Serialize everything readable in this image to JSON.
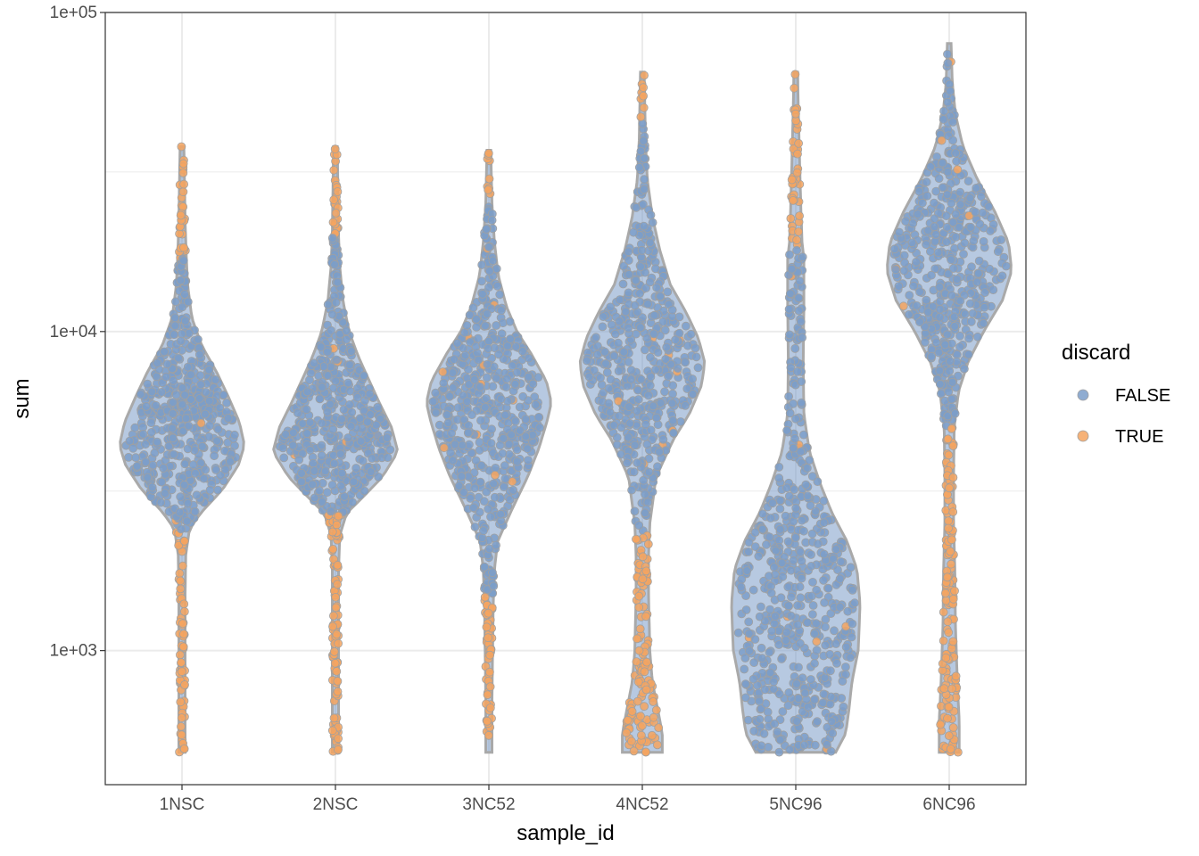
{
  "chart_data": {
    "type": "violin-scatter",
    "xlabel": "sample_id",
    "ylabel": "sum",
    "y_scale": "log10",
    "ylim": [
      380,
      100000
    ],
    "y_ticks": [
      1000,
      10000,
      100000
    ],
    "y_tick_labels": [
      "1e+03",
      "1e+04",
      "1e+05"
    ],
    "grid": true,
    "legend": {
      "title": "discard",
      "position": "right",
      "entries": [
        {
          "label": "FALSE",
          "color": "#7b9dc9"
        },
        {
          "label": "TRUE",
          "color": "#f4a460"
        }
      ]
    },
    "colors": {
      "FALSE": "#7b9dc9",
      "TRUE": "#f4a460",
      "violin_outline": "#a9a9a9",
      "panel_border": "#333333",
      "grid": "#ebebeb"
    },
    "categories": [
      "1NSC",
      "2NSC",
      "3NC52",
      "4NC52",
      "5NC96",
      "6NC96"
    ],
    "samples": [
      {
        "name": "1NSC",
        "min": 480,
        "max": 38000,
        "discard_low_below": 2400,
        "discard_high_above": 17000,
        "density": [
          [
            480,
            0.05
          ],
          [
            700,
            0.05
          ],
          [
            1000,
            0.05
          ],
          [
            1500,
            0.05
          ],
          [
            2000,
            0.06
          ],
          [
            2400,
            0.12
          ],
          [
            2700,
            0.3
          ],
          [
            3200,
            0.65
          ],
          [
            3800,
            0.9
          ],
          [
            4400,
            1.0
          ],
          [
            5200,
            0.92
          ],
          [
            6200,
            0.75
          ],
          [
            7500,
            0.55
          ],
          [
            9000,
            0.32
          ],
          [
            11000,
            0.16
          ],
          [
            14000,
            0.09
          ],
          [
            17000,
            0.07
          ],
          [
            22000,
            0.05
          ],
          [
            30000,
            0.04
          ],
          [
            38000,
            0.03
          ]
        ]
      },
      {
        "name": "2NSC",
        "min": 480,
        "max": 38000,
        "discard_low_below": 2700,
        "discard_high_above": 20000,
        "density": [
          [
            480,
            0.05
          ],
          [
            800,
            0.05
          ],
          [
            1200,
            0.05
          ],
          [
            1800,
            0.05
          ],
          [
            2300,
            0.07
          ],
          [
            2700,
            0.18
          ],
          [
            3000,
            0.42
          ],
          [
            3500,
            0.75
          ],
          [
            4200,
            1.0
          ],
          [
            5000,
            0.9
          ],
          [
            6000,
            0.7
          ],
          [
            7300,
            0.5
          ],
          [
            8500,
            0.35
          ],
          [
            10000,
            0.22
          ],
          [
            12500,
            0.12
          ],
          [
            16000,
            0.07
          ],
          [
            20000,
            0.05
          ],
          [
            28000,
            0.04
          ],
          [
            38000,
            0.03
          ]
        ]
      },
      {
        "name": "3NC52",
        "min": 480,
        "max": 37000,
        "discard_low_below": 1500,
        "discard_high_above": 25000,
        "density": [
          [
            480,
            0.05
          ],
          [
            700,
            0.05
          ],
          [
            1000,
            0.06
          ],
          [
            1400,
            0.07
          ],
          [
            1800,
            0.09
          ],
          [
            2200,
            0.14
          ],
          [
            2800,
            0.38
          ],
          [
            3500,
            0.62
          ],
          [
            4300,
            0.8
          ],
          [
            5300,
            0.94
          ],
          [
            6000,
            1.0
          ],
          [
            7000,
            0.92
          ],
          [
            8500,
            0.68
          ],
          [
            10000,
            0.45
          ],
          [
            12000,
            0.28
          ],
          [
            15000,
            0.15
          ],
          [
            19000,
            0.09
          ],
          [
            25000,
            0.05
          ],
          [
            37000,
            0.03
          ]
        ]
      },
      {
        "name": "4NC52",
        "min": 480,
        "max": 65000,
        "discard_low_below": 2300,
        "discard_high_above": 45000,
        "density": [
          [
            480,
            0.32
          ],
          [
            550,
            0.32
          ],
          [
            650,
            0.25
          ],
          [
            800,
            0.16
          ],
          [
            1000,
            0.12
          ],
          [
            1500,
            0.1
          ],
          [
            2000,
            0.1
          ],
          [
            2500,
            0.12
          ],
          [
            3500,
            0.22
          ],
          [
            4600,
            0.5
          ],
          [
            5500,
            0.75
          ],
          [
            6800,
            0.95
          ],
          [
            8000,
            1.0
          ],
          [
            9500,
            0.9
          ],
          [
            11500,
            0.7
          ],
          [
            14000,
            0.45
          ],
          [
            18000,
            0.28
          ],
          [
            23000,
            0.16
          ],
          [
            30000,
            0.08
          ],
          [
            40000,
            0.05
          ],
          [
            65000,
            0.03
          ]
        ]
      },
      {
        "name": "5NC96",
        "min": 480,
        "max": 65000,
        "discard_low_below": 0,
        "discard_high_above": 18000,
        "density": [
          [
            480,
            0.64
          ],
          [
            550,
            0.8
          ],
          [
            650,
            0.85
          ],
          [
            800,
            0.9
          ],
          [
            1000,
            1.0
          ],
          [
            1400,
            1.03
          ],
          [
            1800,
            0.98
          ],
          [
            2200,
            0.82
          ],
          [
            2700,
            0.58
          ],
          [
            3300,
            0.4
          ],
          [
            4200,
            0.22
          ],
          [
            5500,
            0.13
          ],
          [
            8000,
            0.12
          ],
          [
            12000,
            0.13
          ],
          [
            17000,
            0.13
          ],
          [
            19000,
            0.1
          ],
          [
            25000,
            0.08
          ],
          [
            35000,
            0.06
          ],
          [
            50000,
            0.04
          ],
          [
            65000,
            0.03
          ]
        ]
      },
      {
        "name": "6NC96",
        "min": 480,
        "max": 80000,
        "discard_low_below": 5000,
        "discard_high_above": 0,
        "density": [
          [
            480,
            0.16
          ],
          [
            600,
            0.16
          ],
          [
            800,
            0.13
          ],
          [
            1200,
            0.1
          ],
          [
            1800,
            0.09
          ],
          [
            2500,
            0.07
          ],
          [
            3500,
            0.07
          ],
          [
            5000,
            0.08
          ],
          [
            6500,
            0.15
          ],
          [
            8000,
            0.3
          ],
          [
            10000,
            0.55
          ],
          [
            12500,
            0.85
          ],
          [
            15500,
            1.0
          ],
          [
            19000,
            0.95
          ],
          [
            24000,
            0.72
          ],
          [
            30000,
            0.45
          ],
          [
            38000,
            0.22
          ],
          [
            48000,
            0.1
          ],
          [
            60000,
            0.05
          ],
          [
            80000,
            0.03
          ]
        ]
      }
    ]
  }
}
